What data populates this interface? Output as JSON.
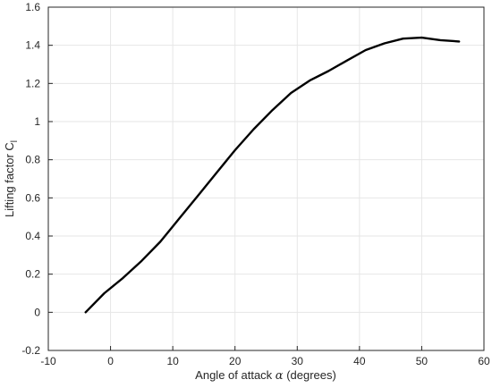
{
  "chart_data": {
    "type": "line",
    "title": "",
    "xlabel": {
      "prefix": "Angle of attack ",
      "symbol": "α",
      "suffix": " (degrees)"
    },
    "ylabel": {
      "text": "Lifting factor C",
      "subscript": "l"
    },
    "xlim": [
      -10,
      60
    ],
    "ylim": [
      -0.2,
      1.6
    ],
    "xticks": [
      "-10",
      "0",
      "10",
      "20",
      "30",
      "40",
      "50",
      "60"
    ],
    "yticks": [
      "-0.2",
      "0",
      "0.2",
      "0.4",
      "0.6",
      "0.8",
      "1",
      "1.2",
      "1.4",
      "1.6"
    ],
    "grid": true,
    "series": [
      {
        "color": "#000000",
        "x": [
          -4,
          -1,
          2,
          5,
          8,
          11,
          14,
          17,
          20,
          23,
          26,
          29,
          32,
          35,
          38,
          41,
          44,
          47,
          50,
          53,
          56
        ],
        "y": [
          0.0,
          0.1,
          0.18,
          0.27,
          0.37,
          0.49,
          0.61,
          0.73,
          0.85,
          0.96,
          1.06,
          1.15,
          1.215,
          1.265,
          1.32,
          1.375,
          1.41,
          1.435,
          1.44,
          1.427,
          1.42
        ]
      }
    ]
  }
}
